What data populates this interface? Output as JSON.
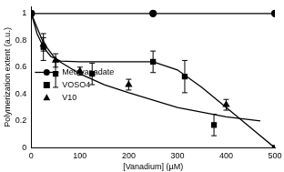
{
  "chart_data": {
    "type": "scatter",
    "x_label": "[Vanadium] (µM)",
    "y_label": "Polymerization extent (a.u.)",
    "xlim": [
      0,
      500
    ],
    "xticks": [
      0,
      100,
      200,
      300,
      400,
      500
    ],
    "ylim": [
      0,
      1.05
    ],
    "yticks": [
      0,
      0.2,
      0.4,
      0.6,
      0.8,
      1
    ],
    "grid": false,
    "legend": "lower-left",
    "series": [
      {
        "name": "Metavanadate",
        "color": "#000000",
        "marker": "circle",
        "line_style": "solid",
        "x": [
          0,
          250,
          500
        ],
        "values": [
          1,
          1,
          1
        ]
      },
      {
        "name": "VOSO4",
        "color": "#000000",
        "marker": "square",
        "x": [
          0,
          25,
          50,
          125,
          250,
          315,
          375,
          500
        ],
        "values": [
          1,
          0.75,
          0.55,
          0.55,
          0.64,
          0.53,
          0.17,
          0
        ],
        "errors": [
          0,
          0.1,
          0.1,
          0.08,
          0.08,
          0.12,
          0.08,
          0
        ]
      },
      {
        "name": "V10",
        "color": "#000000",
        "marker": "triangle",
        "x": [
          25,
          50,
          100,
          200,
          400
        ],
        "values": [
          0.77,
          0.65,
          0.57,
          0.47,
          0.32
        ],
        "errors": [
          0.05,
          0.05,
          0.03,
          0.04,
          0.04
        ]
      },
      {
        "type": "line",
        "color": "#000000",
        "marker": "none",
        "line_style": "solid",
        "x": [
          0,
          12,
          25,
          40,
          60,
          100,
          250,
          300,
          350,
          400,
          450,
          500
        ],
        "values": [
          1,
          0.85,
          0.75,
          0.68,
          0.645,
          0.64,
          0.64,
          0.58,
          0.45,
          0.3,
          0.15,
          0
        ]
      },
      {
        "type": "line",
        "color": "#000000",
        "marker": "none",
        "line_style": "solid",
        "x": [
          0,
          25,
          50,
          100,
          150,
          200,
          300,
          400,
          470
        ],
        "values": [
          1,
          0.78,
          0.66,
          0.55,
          0.47,
          0.41,
          0.3,
          0.23,
          0.2
        ]
      }
    ]
  }
}
